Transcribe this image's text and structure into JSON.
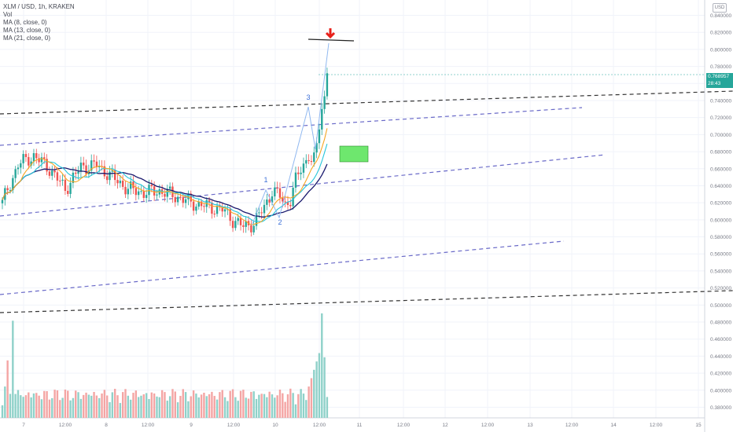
{
  "legend": {
    "title": "XLM / USD, 1h, KRAKEN",
    "vol": "Vol",
    "ma8": "MA (8, close, 0)",
    "ma13": "MA (13, close, 0)",
    "ma21": "MA (21, close, 0)"
  },
  "currency_badge": "USD",
  "last_price": {
    "value": "0.768957",
    "countdown": "28:43"
  },
  "colors": {
    "up": "#26a69a",
    "down": "#ef5350",
    "vol_up": "#8fd1c9",
    "vol_down": "#f4a5a4",
    "ma8": "#f5a623",
    "ma13": "#26c6da",
    "ma21": "#1a1a6e",
    "channel": "#6a6ac8",
    "black_dashed": "#333333",
    "wave": "#90b8f0",
    "target_box": "#6ee76e",
    "arrow": "#e8201a"
  },
  "wave_labels": [
    "1",
    "2",
    "3"
  ],
  "chart_data": {
    "type": "candlestick",
    "ylim": [
      0.374,
      0.846
    ],
    "y_ticks": [
      "0.840000",
      "0.820000",
      "0.800000",
      "0.780000",
      "0.760000",
      "0.740000",
      "0.720000",
      "0.700000",
      "0.680000",
      "0.660000",
      "0.640000",
      "0.620000",
      "0.600000",
      "0.580000",
      "0.560000",
      "0.540000",
      "0.520000",
      "0.500000",
      "0.480000",
      "0.460000",
      "0.440000",
      "0.420000",
      "0.400000",
      "0.380000"
    ],
    "x_ticks": [
      "7",
      "12:00",
      "8",
      "12:00",
      "9",
      "12:00",
      "10",
      "12:00",
      "11",
      "12:00",
      "12",
      "12:00",
      "13",
      "12:00",
      "14",
      "12:00",
      "15"
    ],
    "anchors": [
      [
        0,
        0.62
      ],
      [
        6,
        0.665
      ],
      [
        12,
        0.675
      ],
      [
        18,
        0.66
      ],
      [
        24,
        0.636
      ],
      [
        30,
        0.662
      ],
      [
        36,
        0.664
      ],
      [
        42,
        0.65
      ],
      [
        48,
        0.636
      ],
      [
        54,
        0.632
      ],
      [
        60,
        0.634
      ],
      [
        66,
        0.628
      ],
      [
        72,
        0.62
      ],
      [
        78,
        0.616
      ],
      [
        84,
        0.612
      ],
      [
        88,
        0.6
      ],
      [
        92,
        0.592
      ],
      [
        96,
        0.596
      ],
      [
        100,
        0.615
      ],
      [
        103,
        0.634
      ],
      [
        106,
        0.628
      ],
      [
        108,
        0.618
      ],
      [
        110,
        0.624
      ],
      [
        112,
        0.646
      ],
      [
        114,
        0.66
      ],
      [
        116,
        0.67
      ],
      [
        118,
        0.668
      ],
      [
        120,
        0.69
      ],
      [
        121,
        0.706
      ],
      [
        122,
        0.73
      ],
      [
        123,
        0.745
      ],
      [
        124,
        0.772
      ]
    ],
    "ma8_last": 0.704,
    "ma13_last": 0.682,
    "ma21_last": 0.66,
    "volume_ylim": [
      0,
      100
    ]
  }
}
